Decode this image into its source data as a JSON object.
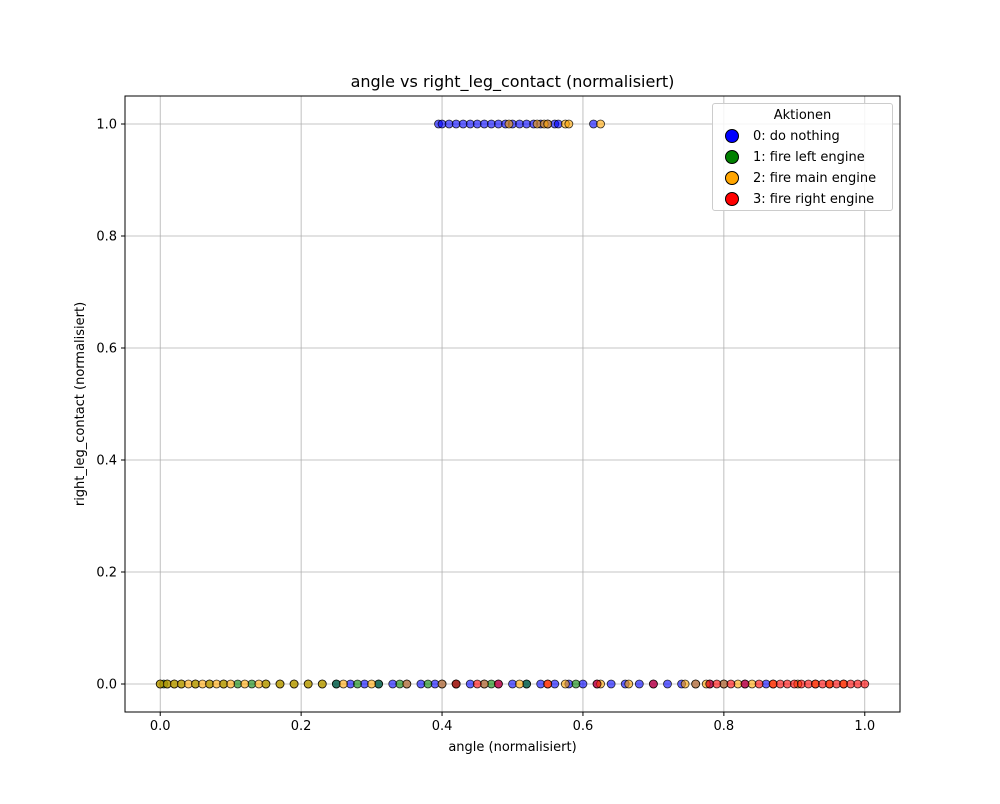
{
  "chart_data": {
    "type": "scatter",
    "title": "angle vs right_leg_contact (normalisiert)",
    "xlabel": "angle (normalisiert)",
    "ylabel": "right_leg_contact (normalisiert)",
    "xlim": [
      -0.05,
      1.05
    ],
    "ylim": [
      -0.05,
      1.05
    ],
    "xticks": [
      "0.0",
      "0.2",
      "0.4",
      "0.6",
      "0.8",
      "1.0"
    ],
    "yticks": [
      "0.0",
      "0.2",
      "0.4",
      "0.6",
      "0.8",
      "1.0"
    ],
    "grid": true,
    "legend": {
      "title": "Aktionen",
      "placement": "top-right",
      "entries": [
        "0: do nothing",
        "1: fire left engine",
        "2: fire main engine",
        "3: fire right engine"
      ]
    },
    "series": [
      {
        "name": "0: do nothing",
        "color": "#0000ff",
        "points": [
          [
            0.395,
            1
          ],
          [
            0.4,
            1
          ],
          [
            0.41,
            1
          ],
          [
            0.42,
            1
          ],
          [
            0.43,
            1
          ],
          [
            0.44,
            1
          ],
          [
            0.45,
            1
          ],
          [
            0.46,
            1
          ],
          [
            0.47,
            1
          ],
          [
            0.48,
            1
          ],
          [
            0.49,
            1
          ],
          [
            0.5,
            1
          ],
          [
            0.51,
            1
          ],
          [
            0.52,
            1
          ],
          [
            0.53,
            1
          ],
          [
            0.54,
            1
          ],
          [
            0.55,
            1
          ],
          [
            0.56,
            1
          ],
          [
            0.565,
            1
          ],
          [
            0.615,
            1
          ],
          [
            0.25,
            0
          ],
          [
            0.27,
            0
          ],
          [
            0.29,
            0
          ],
          [
            0.31,
            0
          ],
          [
            0.33,
            0
          ],
          [
            0.35,
            0
          ],
          [
            0.37,
            0
          ],
          [
            0.39,
            0
          ],
          [
            0.4,
            0
          ],
          [
            0.42,
            0
          ],
          [
            0.44,
            0
          ],
          [
            0.46,
            0
          ],
          [
            0.48,
            0
          ],
          [
            0.5,
            0
          ],
          [
            0.52,
            0
          ],
          [
            0.54,
            0
          ],
          [
            0.56,
            0
          ],
          [
            0.58,
            0
          ],
          [
            0.6,
            0
          ],
          [
            0.62,
            0
          ],
          [
            0.64,
            0
          ],
          [
            0.66,
            0
          ],
          [
            0.68,
            0
          ],
          [
            0.7,
            0
          ],
          [
            0.72,
            0
          ],
          [
            0.74,
            0
          ],
          [
            0.76,
            0
          ],
          [
            0.78,
            0
          ],
          [
            0.8,
            0
          ],
          [
            0.83,
            0
          ],
          [
            0.86,
            0
          ]
        ]
      },
      {
        "name": "1: fire left engine",
        "color": "#008000",
        "points": [
          [
            0.0,
            0
          ],
          [
            0.005,
            0
          ],
          [
            0.01,
            0
          ],
          [
            0.02,
            0
          ],
          [
            0.03,
            0
          ],
          [
            0.05,
            0
          ],
          [
            0.07,
            0
          ],
          [
            0.09,
            0
          ],
          [
            0.11,
            0
          ],
          [
            0.13,
            0
          ],
          [
            0.15,
            0
          ],
          [
            0.17,
            0
          ],
          [
            0.19,
            0
          ],
          [
            0.21,
            0
          ],
          [
            0.23,
            0
          ],
          [
            0.25,
            0
          ],
          [
            0.28,
            0
          ],
          [
            0.31,
            0
          ],
          [
            0.34,
            0
          ],
          [
            0.38,
            0
          ],
          [
            0.42,
            0
          ],
          [
            0.47,
            0
          ],
          [
            0.52,
            0
          ],
          [
            0.59,
            0
          ]
        ]
      },
      {
        "name": "2: fire main engine",
        "color": "#ffa500",
        "points": [
          [
            0.495,
            1
          ],
          [
            0.535,
            1
          ],
          [
            0.545,
            1
          ],
          [
            0.55,
            1
          ],
          [
            0.575,
            1
          ],
          [
            0.58,
            1
          ],
          [
            0.625,
            1
          ],
          [
            0.0,
            0
          ],
          [
            0.01,
            0
          ],
          [
            0.02,
            0
          ],
          [
            0.03,
            0
          ],
          [
            0.04,
            0
          ],
          [
            0.05,
            0
          ],
          [
            0.06,
            0
          ],
          [
            0.07,
            0
          ],
          [
            0.08,
            0
          ],
          [
            0.09,
            0
          ],
          [
            0.1,
            0
          ],
          [
            0.12,
            0
          ],
          [
            0.14,
            0
          ],
          [
            0.15,
            0
          ],
          [
            0.17,
            0
          ],
          [
            0.19,
            0
          ],
          [
            0.21,
            0
          ],
          [
            0.23,
            0
          ],
          [
            0.26,
            0
          ],
          [
            0.3,
            0
          ],
          [
            0.35,
            0
          ],
          [
            0.4,
            0
          ],
          [
            0.46,
            0
          ],
          [
            0.51,
            0
          ],
          [
            0.55,
            0
          ],
          [
            0.575,
            0
          ],
          [
            0.625,
            0
          ],
          [
            0.665,
            0
          ],
          [
            0.745,
            0
          ],
          [
            0.76,
            0
          ],
          [
            0.775,
            0
          ],
          [
            0.8,
            0
          ],
          [
            0.82,
            0
          ],
          [
            0.84,
            0
          ],
          [
            0.87,
            0
          ],
          [
            0.905,
            0
          ],
          [
            0.93,
            0
          ],
          [
            0.95,
            0
          ],
          [
            0.97,
            0
          ]
        ]
      },
      {
        "name": "3: fire right engine",
        "color": "#ff0000",
        "points": [
          [
            0.42,
            0
          ],
          [
            0.45,
            0
          ],
          [
            0.48,
            0
          ],
          [
            0.55,
            0
          ],
          [
            0.62,
            0
          ],
          [
            0.7,
            0
          ],
          [
            0.78,
            0
          ],
          [
            0.79,
            0
          ],
          [
            0.81,
            0
          ],
          [
            0.83,
            0
          ],
          [
            0.85,
            0
          ],
          [
            0.87,
            0
          ],
          [
            0.88,
            0
          ],
          [
            0.89,
            0
          ],
          [
            0.9,
            0
          ],
          [
            0.91,
            0
          ],
          [
            0.92,
            0
          ],
          [
            0.93,
            0
          ],
          [
            0.94,
            0
          ],
          [
            0.95,
            0
          ],
          [
            0.96,
            0
          ],
          [
            0.97,
            0
          ],
          [
            0.98,
            0
          ],
          [
            0.99,
            0
          ],
          [
            1.0,
            0
          ]
        ]
      }
    ]
  }
}
